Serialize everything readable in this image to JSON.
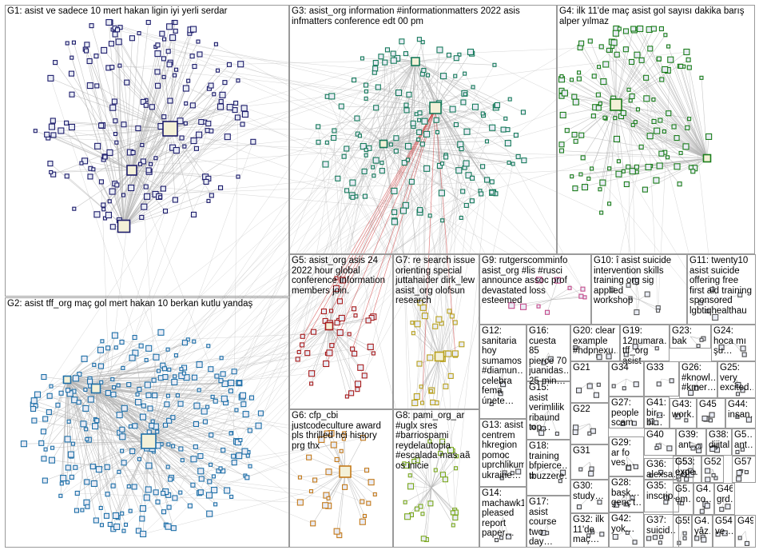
{
  "graph": {
    "groups": [
      {
        "id": "G1",
        "label": "G1: asist ve sadece 10 mert hakan ligin iyi yerli serdar",
        "color": "#1c1c6b"
      },
      {
        "id": "G2",
        "label": "G2: asist tff_org maç gol mert hakan 10 berkan kutlu yandaş",
        "color": "#1d6fa8"
      },
      {
        "id": "G3",
        "label": "G3: asist_org information #informationmatters 2022 asis\ninfmatters conference edt 00 pm",
        "color": "#157a5a"
      },
      {
        "id": "G4",
        "label": "G4: ilk 11'de maç asist gol sayısı dakika barış\nalper yılmaz",
        "color": "#1a7d1a"
      },
      {
        "id": "G5",
        "label": "G5: asist_org asis 24\n2022 hour global\nconference information\nmembers join.",
        "color": "#a81c1c"
      },
      {
        "id": "G6",
        "label": "G6: cfp_cbi\njustcodeculture award\npls thrilled hci history\nprg thx",
        "color": "#c47a1a"
      },
      {
        "id": "G7",
        "label": "G7: re search issue\norienting special\njuttahaider dirk_lew\nasist_org olofsun\nresearch",
        "color": "#b8a01a"
      },
      {
        "id": "G8",
        "label": "G8: pami_org_ar\n#uglx sres\n#barriospami\nreydelautopia\n#escalada mas aã\nos inicie",
        "color": "#7aa81c"
      },
      {
        "id": "G9",
        "label": "G9: rutgerscomminfo\nasist_org #lis #rusci\nannounce assoc prof\ndevastated loss\nesteemed",
        "color": "#c44a8a"
      },
      {
        "id": "G10",
        "label": "G10: î asist suicide\nintervention skills\ntraining org sig applied\nworkshop",
        "color": "#5a5a5a"
      },
      {
        "id": "G11",
        "label": "G11: twenty10\nasist suicide\noffering free\nfirst aid training\nsponsored\nlgbtiqhealthau",
        "color": "#5a5a5a"
      },
      {
        "id": "G12",
        "label": "G12:\nsanitaria\nhoy\nsumamos\n#diamun…\ncelebra\nfema\núnete…",
        "color": "#4a4a4a"
      },
      {
        "id": "G13",
        "label": "G13: asist\ncentrem\nhkregion\npomoc\nuprchlikum\nukraine…",
        "color": "#4a4a4a"
      },
      {
        "id": "G14",
        "label": "G14:\nmachawk1\npleased\nreport\npaper…",
        "color": "#4a4a4a"
      },
      {
        "id": "G15",
        "label": "G15:\nasist\nverimlilik\nribaund\ntop…",
        "color": "#4a4a4a"
      },
      {
        "id": "G16",
        "label": "G16:\ncuesta 85\npierce 70\njuanidas…\n25 min…",
        "color": "#4a4a4a"
      },
      {
        "id": "G17",
        "label": "G17:\nasist\ncourse\ntwo day…",
        "color": "#4a4a4a"
      },
      {
        "id": "G18",
        "label": "G18:\ntraining\nbfpierce…\ntbuzzere…",
        "color": "#4a4a4a"
      },
      {
        "id": "G19",
        "label": "G19:\n12numara…\ntff_org asist",
        "color": "#4a4a4a"
      },
      {
        "id": "G20",
        "label": "G20: clear\nexample\n#hdpnexu…",
        "color": "#4a4a4a"
      },
      {
        "id": "G21",
        "label": "G21",
        "color": "#4a4a4a"
      },
      {
        "id": "G22",
        "label": "G22",
        "color": "#4a4a4a"
      },
      {
        "id": "G23",
        "label": "G23: bak",
        "color": "#4a4a4a"
      },
      {
        "id": "G24",
        "label": "G24:\nhoca mı\nşu…",
        "color": "#4a4a4a"
      },
      {
        "id": "G25",
        "label": "G25:\nvery\nexcited…",
        "color": "#4a4a4a"
      },
      {
        "id": "G26",
        "label": "G26:\n#knowl…\n#kmer…",
        "color": "#4a4a4a"
      },
      {
        "id": "G27",
        "label": "G27:\npeople\nscam",
        "color": "#4a4a4a"
      },
      {
        "id": "G28",
        "label": "G28:\nbaşk…\ngenç't…",
        "color": "#4a4a4a"
      },
      {
        "id": "G29",
        "label": "G29:\nar fo\nves…",
        "color": "#4a4a4a"
      },
      {
        "id": "G30",
        "label": "G30:\nstudy…",
        "color": "#4a4a4a"
      },
      {
        "id": "G31",
        "label": "G31",
        "color": "#4a4a4a"
      },
      {
        "id": "G32",
        "label": "G32: ilk\n11'de\nmaç…",
        "color": "#4a4a4a"
      },
      {
        "id": "G33",
        "label": "G33",
        "color": "#4a4a4a"
      },
      {
        "id": "G34",
        "label": "G34",
        "color": "#4a4a4a"
      },
      {
        "id": "G35",
        "label": "G35:\ninscrip…",
        "color": "#4a4a4a"
      },
      {
        "id": "G36",
        "label": "G36:\nalexsa…",
        "color": "#4a4a4a"
      },
      {
        "id": "G37",
        "label": "G37:\nsuicid…",
        "color": "#4a4a4a"
      },
      {
        "id": "G38",
        "label": "G38:\ndijital…",
        "color": "#4a4a4a"
      },
      {
        "id": "G39",
        "label": "G39:\nant…",
        "color": "#4a4a4a"
      },
      {
        "id": "G40",
        "label": "G40",
        "color": "#4a4a4a"
      },
      {
        "id": "G41",
        "label": "G41:\nbir…\nbi…",
        "color": "#4a4a4a"
      },
      {
        "id": "G42",
        "label": "G42:\nyok…",
        "color": "#4a4a4a"
      },
      {
        "id": "G43",
        "label": "G43:\nwork…",
        "color": "#4a4a4a"
      },
      {
        "id": "G44",
        "label": "G44:\ninsan…",
        "color": "#4a4a4a"
      },
      {
        "id": "G45",
        "label": "G45",
        "color": "#4a4a4a"
      },
      {
        "id": "G46",
        "label": "G46:\ngrd…",
        "color": "#4a4a4a"
      },
      {
        "id": "G47",
        "label": "G4…\nyâz…",
        "color": "#4a4a4a"
      },
      {
        "id": "G48",
        "label": "G4…\nco…",
        "color": "#4a4a4a"
      },
      {
        "id": "G49",
        "label": "G49",
        "color": "#4a4a4a"
      },
      {
        "id": "G50",
        "label": "G5…\nem…",
        "color": "#4a4a4a"
      },
      {
        "id": "G51",
        "label": "G5…\nexpe…",
        "color": "#4a4a4a"
      },
      {
        "id": "G52",
        "label": "G52",
        "color": "#4a4a4a"
      },
      {
        "id": "G53",
        "label": "G53:\nexpe…",
        "color": "#4a4a4a"
      },
      {
        "id": "G54",
        "label": "G54:\nve…",
        "color": "#4a4a4a"
      },
      {
        "id": "G55",
        "label": "G55",
        "color": "#4a4a4a"
      },
      {
        "id": "G56",
        "label": "G5…\nant…",
        "color": "#4a4a4a"
      },
      {
        "id": "G57",
        "label": "G57",
        "color": "#4a4a4a"
      }
    ],
    "edge_color": "#b4b4b4",
    "highlight_edge_color": "#cc2a2a",
    "node_border_color": "#1b1b60",
    "node_fill_color": "#e9ecf5"
  }
}
